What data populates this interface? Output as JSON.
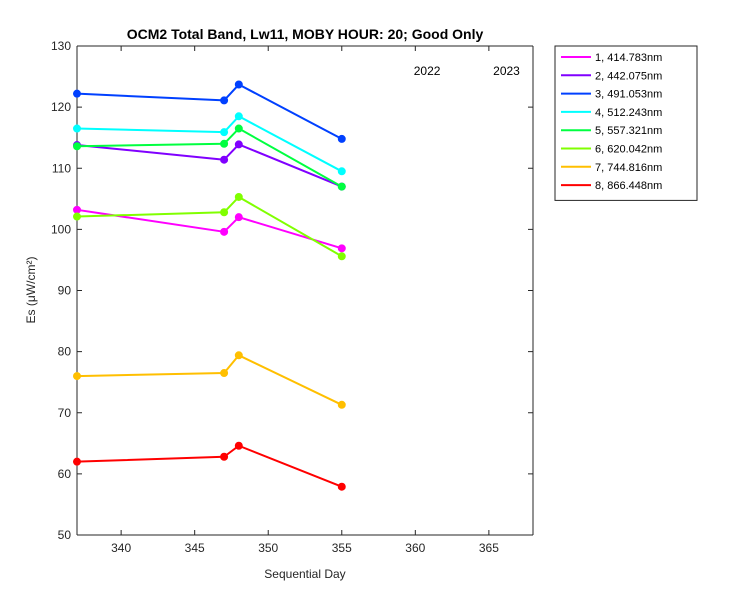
{
  "chart_data": {
    "type": "line",
    "title": "OCM2 Total Band,  Lw11, MOBY HOUR: 20;  Good Only",
    "xlabel": "Sequential Day",
    "ylabel": "Es (μW/cm²)",
    "xlim": [
      337,
      368
    ],
    "ylim": [
      50,
      130
    ],
    "xticks": [
      340,
      345,
      350,
      355,
      360,
      365
    ],
    "yticks": [
      50,
      60,
      70,
      80,
      90,
      100,
      110,
      120,
      130
    ],
    "grid": false,
    "legend_position": "outside-top-right",
    "year_labels": [
      {
        "text": "2022",
        "x": 360.8
      },
      {
        "text": "2023",
        "x": 366.2
      }
    ],
    "x": [
      337,
      347,
      348,
      355
    ],
    "series": [
      {
        "name": "1, 414.783nm",
        "color": "#ff00ff",
        "values": [
          103.2,
          99.6,
          102.0,
          96.9
        ]
      },
      {
        "name": "2, 442.075nm",
        "color": "#8000ff",
        "values": [
          113.8,
          111.4,
          113.9,
          107.0
        ]
      },
      {
        "name": "3, 491.053nm",
        "color": "#0040ff",
        "values": [
          122.2,
          121.1,
          123.7,
          114.8
        ]
      },
      {
        "name": "4, 512.243nm",
        "color": "#00ffff",
        "values": [
          116.5,
          115.9,
          118.5,
          109.5
        ]
      },
      {
        "name": "5, 557.321nm",
        "color": "#00ff40",
        "values": [
          113.6,
          114.0,
          116.5,
          107.0
        ]
      },
      {
        "name": "6, 620.042nm",
        "color": "#80ff00",
        "values": [
          102.1,
          102.8,
          105.3,
          95.6
        ]
      },
      {
        "name": "7, 744.816nm",
        "color": "#ffbf00",
        "values": [
          76.0,
          76.5,
          79.4,
          71.3
        ]
      },
      {
        "name": "8, 866.448nm",
        "color": "#ff0000",
        "values": [
          62.0,
          62.8,
          64.6,
          57.9
        ]
      }
    ]
  }
}
